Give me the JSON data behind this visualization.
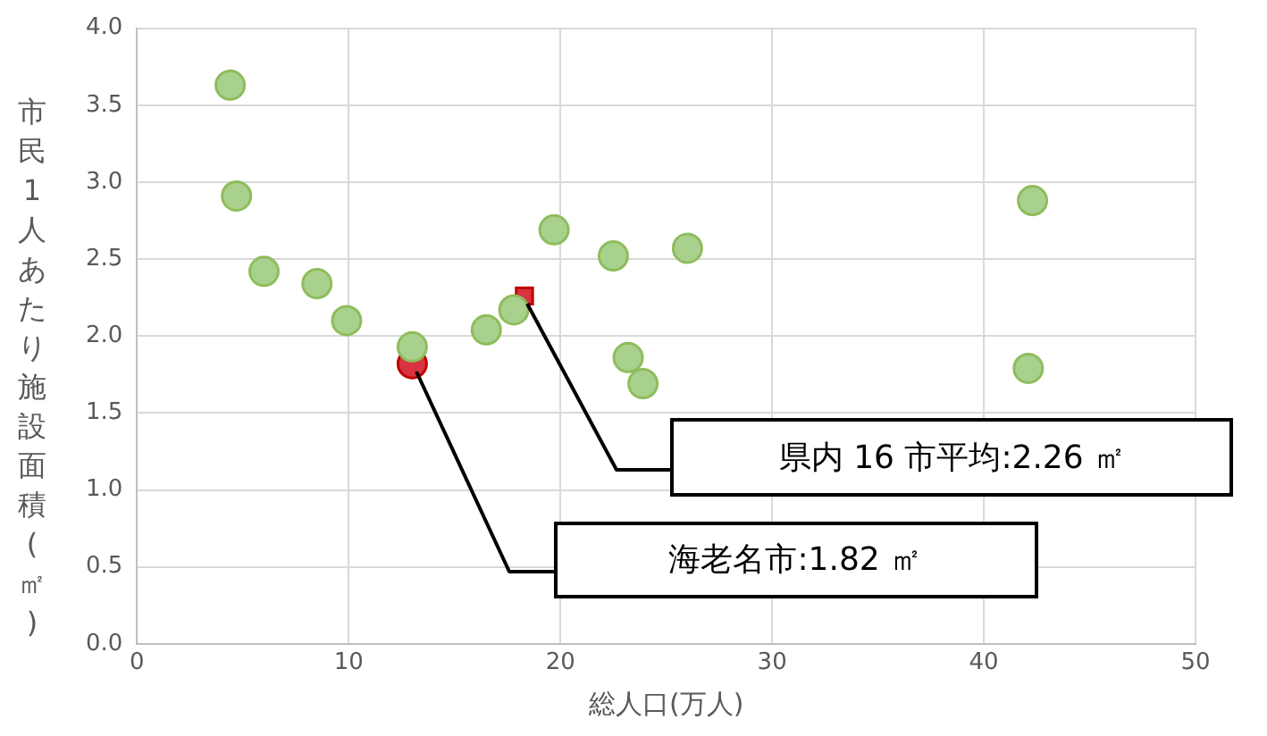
{
  "chart_data": {
    "type": "scatter",
    "xlabel": "総人口(万人)",
    "ylabel": "市民1人あたり施設面積(㎡)",
    "xlim": [
      0,
      50
    ],
    "xticks": [
      0,
      10,
      20,
      30,
      40,
      50
    ],
    "ylim": [
      0,
      4
    ],
    "yticks": [
      {
        "value": 0,
        "label": "0.0"
      },
      {
        "value": 0.5,
        "label": "0.5"
      },
      {
        "value": 1,
        "label": "1.0"
      },
      {
        "value": 1.5,
        "label": "1.5"
      },
      {
        "value": 2,
        "label": "2.0"
      },
      {
        "value": 2.5,
        "label": "2.5"
      },
      {
        "value": 3,
        "label": "3.0"
      },
      {
        "value": 3.5,
        "label": "3.5"
      },
      {
        "value": 4,
        "label": "4.0"
      }
    ],
    "grid": true,
    "legend": false,
    "series": [
      {
        "color": "#a9d18e",
        "marker": "circle",
        "x": [
          4.4,
          4.7,
          6.0,
          8.5,
          9.9,
          13.0,
          16.5,
          17.8,
          19.7,
          22.5,
          26.0,
          23.2,
          23.9,
          42.3,
          42.1
        ],
        "values": [
          3.63,
          2.91,
          2.42,
          2.34,
          2.1,
          1.93,
          2.04,
          2.17,
          2.69,
          2.52,
          2.57,
          1.86,
          1.69,
          2.88,
          1.79
        ]
      },
      {
        "color": "#d9333f",
        "marker": "square",
        "x": [
          18.3
        ],
        "values": [
          2.26
        ]
      },
      {
        "color": "#d9333f",
        "marker": "circle",
        "x": [
          13.0
        ],
        "values": [
          1.82
        ]
      }
    ],
    "annotations": [
      "県内 16 市平均:2.26 ㎡",
      "海老名市:1.82 ㎡"
    ]
  }
}
